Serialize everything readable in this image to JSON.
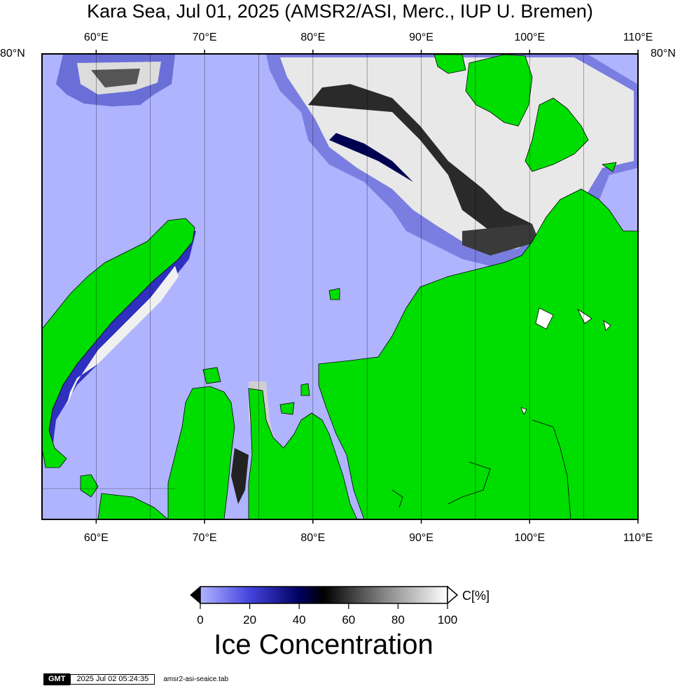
{
  "title": "Kara Sea, Jul 01, 2025 (AMSR2/ASI, Merc., IUP U. Bremen)",
  "map": {
    "lon_min": 55,
    "lon_max": 110,
    "lat_top": 80,
    "top_lon_labels": [
      "60°E",
      "70°E",
      "80°E",
      "90°E",
      "100°E",
      "110°E"
    ],
    "top_lon_values": [
      60,
      70,
      80,
      90,
      100,
      110
    ],
    "bottom_lon_labels": [
      "60°E",
      "70°E",
      "80°E",
      "90°E",
      "100°E",
      "110°E"
    ],
    "bottom_lon_values": [
      60,
      70,
      80,
      90,
      100,
      110
    ],
    "left_lat_label": "80°N",
    "right_lat_label": "80°N",
    "gridline_lons": [
      60,
      65,
      70,
      75,
      80,
      85,
      90,
      95,
      100,
      105
    ],
    "colors": {
      "open_water": "#b0b4ff",
      "land": "#00dd00",
      "ice_high": "#ffffff",
      "ice_mid": "#000000",
      "ice_low": "#2020d0"
    }
  },
  "colorbar": {
    "ticks": [
      "0",
      "20",
      "40",
      "60",
      "80",
      "100"
    ],
    "tick_values": [
      0,
      20,
      40,
      60,
      80,
      100
    ],
    "unit": "C[%]",
    "title": "Ice Concentration",
    "stops": [
      "#b0b4ff",
      "#000070",
      "#000000",
      "#ffffff"
    ]
  },
  "footer": {
    "logo": "GMT",
    "timestamp": "2025 Jul 02 05:24:35",
    "filename": "amsr2-asi-seaice.tab"
  }
}
